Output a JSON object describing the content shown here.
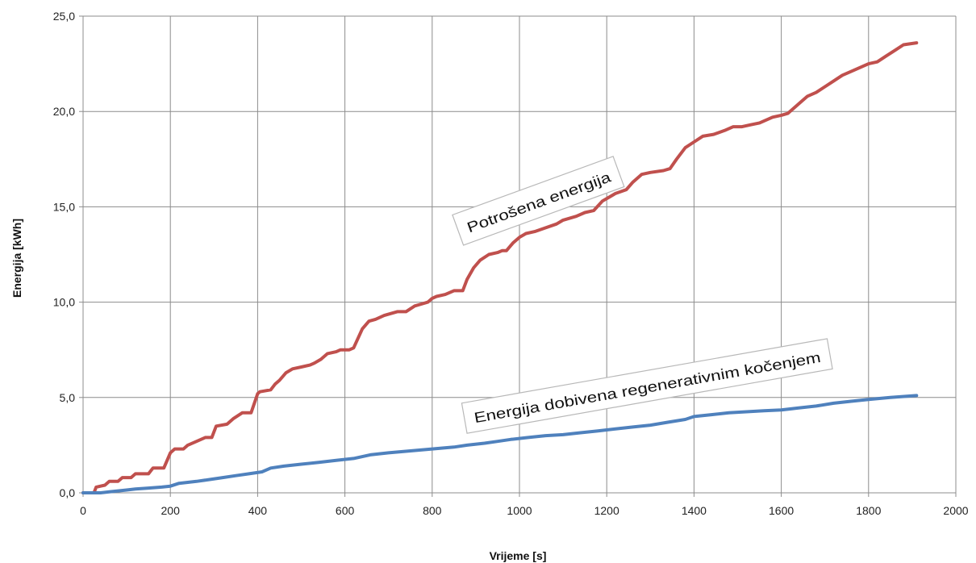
{
  "chart_data": {
    "type": "line",
    "title": "",
    "xlabel": "Vrijeme [s]",
    "ylabel": "Energija  [kWh]",
    "xlim": [
      0,
      2000
    ],
    "ylim": [
      0,
      25
    ],
    "xticks": [
      0,
      200,
      400,
      600,
      800,
      1000,
      1200,
      1400,
      1600,
      1800,
      2000
    ],
    "xtick_labels": [
      "0",
      "200",
      "400",
      "600",
      "800",
      "1000",
      "1200",
      "1400",
      "1600",
      "1800",
      "2000"
    ],
    "yticks": [
      0,
      5,
      10,
      15,
      20,
      25
    ],
    "ytick_labels": [
      "0,0",
      "5,0",
      "10,0",
      "15,0",
      "20,0",
      "25,0"
    ],
    "grid": true,
    "annotations": [
      "Potrošena energija",
      "Energija  dobivena regenerativnim kočenjem"
    ],
    "series": [
      {
        "color": "#c0504d",
        "x": [
          0,
          25,
          30,
          50,
          60,
          80,
          90,
          110,
          120,
          150,
          160,
          185,
          200,
          210,
          230,
          240,
          260,
          280,
          295,
          305,
          330,
          345,
          365,
          385,
          400,
          405,
          430,
          440,
          450,
          465,
          480,
          500,
          520,
          530,
          545,
          560,
          580,
          590,
          610,
          620,
          640,
          655,
          670,
          690,
          720,
          740,
          760,
          775,
          790,
          800,
          810,
          830,
          850,
          870,
          880,
          895,
          910,
          930,
          950,
          960,
          970,
          985,
          1000,
          1015,
          1035,
          1060,
          1085,
          1100,
          1130,
          1150,
          1170,
          1190,
          1205,
          1220,
          1245,
          1260,
          1280,
          1300,
          1330,
          1345,
          1360,
          1380,
          1400,
          1420,
          1445,
          1470,
          1490,
          1510,
          1530,
          1550,
          1570,
          1580,
          1600,
          1615,
          1630,
          1645,
          1660,
          1680,
          1700,
          1720,
          1740,
          1760,
          1780,
          1800,
          1820,
          1840,
          1860,
          1880,
          1910
        ],
        "y": [
          0,
          0,
          0.3,
          0.4,
          0.6,
          0.6,
          0.8,
          0.8,
          1.0,
          1.0,
          1.3,
          1.3,
          2.1,
          2.3,
          2.3,
          2.5,
          2.7,
          2.9,
          2.9,
          3.5,
          3.6,
          3.9,
          4.2,
          4.2,
          5.2,
          5.3,
          5.4,
          5.7,
          5.9,
          6.3,
          6.5,
          6.6,
          6.7,
          6.8,
          7.0,
          7.3,
          7.4,
          7.5,
          7.5,
          7.6,
          8.6,
          9.0,
          9.1,
          9.3,
          9.5,
          9.5,
          9.8,
          9.9,
          10.0,
          10.2,
          10.3,
          10.4,
          10.6,
          10.6,
          11.2,
          11.8,
          12.2,
          12.5,
          12.6,
          12.7,
          12.7,
          13.1,
          13.4,
          13.6,
          13.7,
          13.9,
          14.1,
          14.3,
          14.5,
          14.7,
          14.8,
          15.3,
          15.5,
          15.7,
          15.9,
          16.3,
          16.7,
          16.8,
          16.9,
          17.0,
          17.5,
          18.1,
          18.4,
          18.7,
          18.8,
          19.0,
          19.2,
          19.2,
          19.3,
          19.4,
          19.6,
          19.7,
          19.8,
          19.9,
          20.2,
          20.5,
          20.8,
          21.0,
          21.3,
          21.6,
          21.9,
          22.1,
          22.3,
          22.5,
          22.6,
          22.9,
          23.2,
          23.5,
          23.6
        ]
      },
      {
        "color": "#4f81bd",
        "x": [
          0,
          40,
          60,
          80,
          100,
          120,
          150,
          180,
          200,
          220,
          260,
          290,
          320,
          350,
          380,
          410,
          430,
          460,
          500,
          540,
          580,
          620,
          660,
          700,
          750,
          800,
          850,
          880,
          920,
          950,
          980,
          1020,
          1060,
          1100,
          1140,
          1180,
          1220,
          1260,
          1300,
          1340,
          1380,
          1400,
          1440,
          1480,
          1520,
          1560,
          1600,
          1640,
          1680,
          1720,
          1760,
          1800,
          1850,
          1910
        ],
        "y": [
          0,
          0,
          0.05,
          0.1,
          0.15,
          0.2,
          0.25,
          0.3,
          0.35,
          0.5,
          0.6,
          0.7,
          0.8,
          0.9,
          1.0,
          1.1,
          1.3,
          1.4,
          1.5,
          1.6,
          1.7,
          1.8,
          2.0,
          2.1,
          2.2,
          2.3,
          2.4,
          2.5,
          2.6,
          2.7,
          2.8,
          2.9,
          3.0,
          3.05,
          3.15,
          3.25,
          3.35,
          3.45,
          3.55,
          3.7,
          3.85,
          4.0,
          4.1,
          4.2,
          4.25,
          4.3,
          4.35,
          4.45,
          4.55,
          4.7,
          4.8,
          4.9,
          5.0,
          5.1
        ]
      }
    ]
  }
}
